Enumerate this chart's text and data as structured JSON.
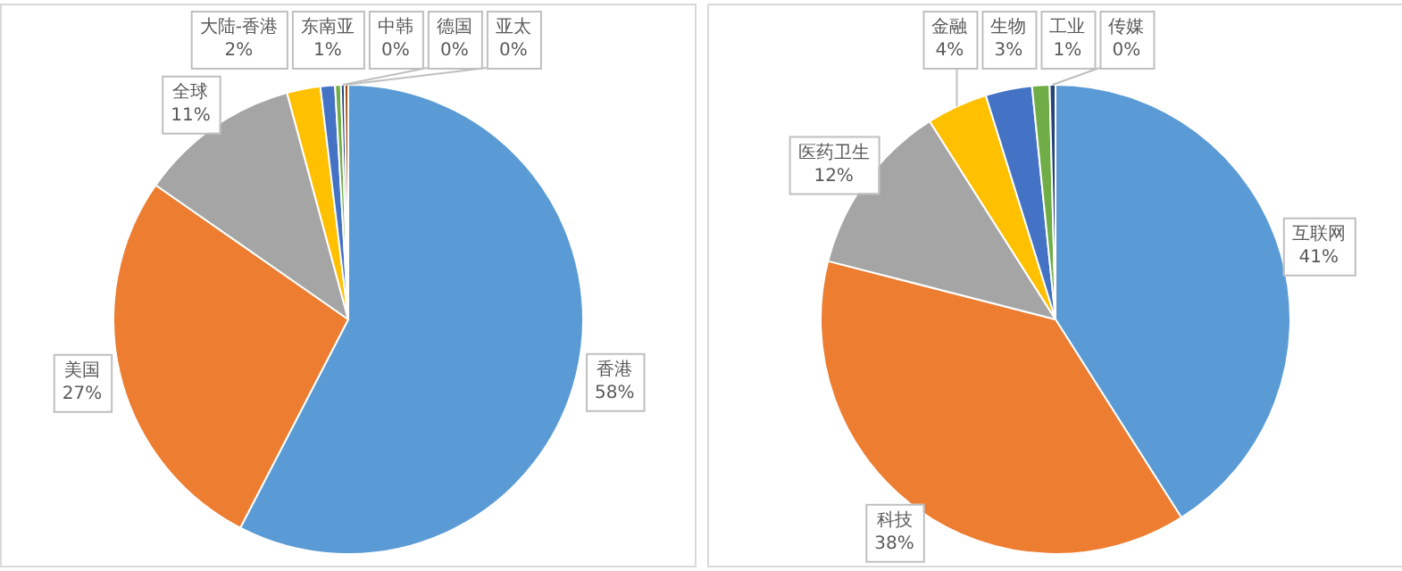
{
  "chart_data": [
    {
      "type": "pie",
      "categories": [
        "香港",
        "美国",
        "全球",
        "大陆-香港",
        "东南亚",
        "中韩",
        "德国",
        "亚太"
      ],
      "values": [
        57.6,
        27.1,
        11.1,
        2.3,
        1.0,
        0.4,
        0.25,
        0.25
      ],
      "value_labels": [
        "58%",
        "27%",
        "11%",
        "2%",
        "1%",
        "0%",
        "0%",
        "0%"
      ],
      "colors": [
        "#5b9bd5",
        "#ed7d31",
        "#a5a5a5",
        "#ffc000",
        "#4472c4",
        "#70ad47",
        "#264478",
        "#9e480e"
      ],
      "legend": false
    },
    {
      "type": "pie",
      "categories": [
        "互联网",
        "科技",
        "医药卫生",
        "金融",
        "生物",
        "工业",
        "传媒"
      ],
      "values": [
        41,
        38,
        12,
        4.2,
        3.2,
        1.2,
        0.4
      ],
      "value_labels": [
        "41%",
        "38%",
        "12%",
        "4%",
        "3%",
        "1%",
        "0%"
      ],
      "colors": [
        "#5b9bd5",
        "#ed7d31",
        "#a5a5a5",
        "#ffc000",
        "#4472c4",
        "#70ad47",
        "#264478"
      ],
      "legend": false
    }
  ]
}
